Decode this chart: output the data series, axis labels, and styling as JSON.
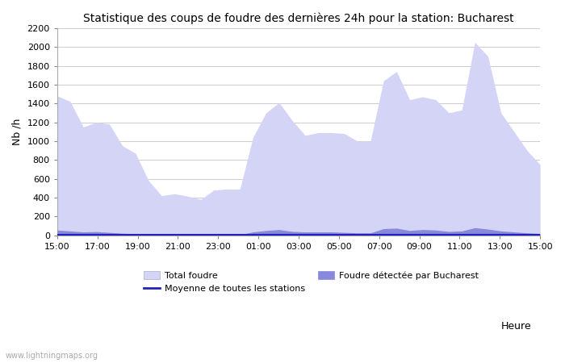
{
  "title": "Statistique des coups de foudre des dernières 24h pour la station: Bucharest",
  "xlabel": "Heure",
  "ylabel": "Nb /h",
  "ylim": [
    0,
    2200
  ],
  "yticks": [
    0,
    200,
    400,
    600,
    800,
    1000,
    1200,
    1400,
    1600,
    1800,
    2000,
    2200
  ],
  "x_labels": [
    "15:00",
    "17:00",
    "19:00",
    "21:00",
    "23:00",
    "01:00",
    "03:00",
    "05:00",
    "07:00",
    "09:00",
    "11:00",
    "13:00",
    "15:00"
  ],
  "background_color": "#ffffff",
  "plot_bg_color": "#ffffff",
  "grid_color": "#cccccc",
  "total_foudre_color": "#d4d4f7",
  "total_foudre_edge": "#d4d4f7",
  "bucharest_color": "#8888dd",
  "bucharest_edge": "#8888dd",
  "moyenne_color": "#2222bb",
  "watermark": "www.lightningmaps.org",
  "legend_total": "Total foudre",
  "legend_moyenne": "Moyenne de toutes les stations",
  "legend_bucharest": "Foudre détectée par Bucharest",
  "total_foudre": [
    1480,
    1420,
    1150,
    1200,
    1180,
    950,
    870,
    580,
    420,
    440,
    415,
    380,
    480,
    490,
    490,
    1040,
    1300,
    1410,
    1220,
    1060,
    1090,
    1090,
    1080,
    1000,
    1000,
    1640,
    1740,
    1440,
    1470,
    1440,
    1300,
    1330,
    2050,
    1900,
    1300,
    1100,
    900,
    750
  ],
  "bucharest_foudre": [
    55,
    45,
    35,
    38,
    30,
    20,
    15,
    8,
    5,
    5,
    5,
    5,
    5,
    5,
    5,
    35,
    50,
    60,
    40,
    35,
    35,
    35,
    30,
    25,
    25,
    70,
    75,
    50,
    60,
    55,
    40,
    45,
    80,
    65,
    45,
    35,
    25,
    18
  ],
  "moyenne_line": [
    5,
    5,
    5,
    5,
    5,
    5,
    5,
    5,
    5,
    5,
    5,
    5,
    5,
    5,
    5,
    5,
    5,
    5,
    5,
    5,
    5,
    5,
    5,
    5,
    5,
    5,
    5,
    5,
    5,
    5,
    5,
    5,
    5,
    5,
    5,
    5,
    5,
    5
  ]
}
